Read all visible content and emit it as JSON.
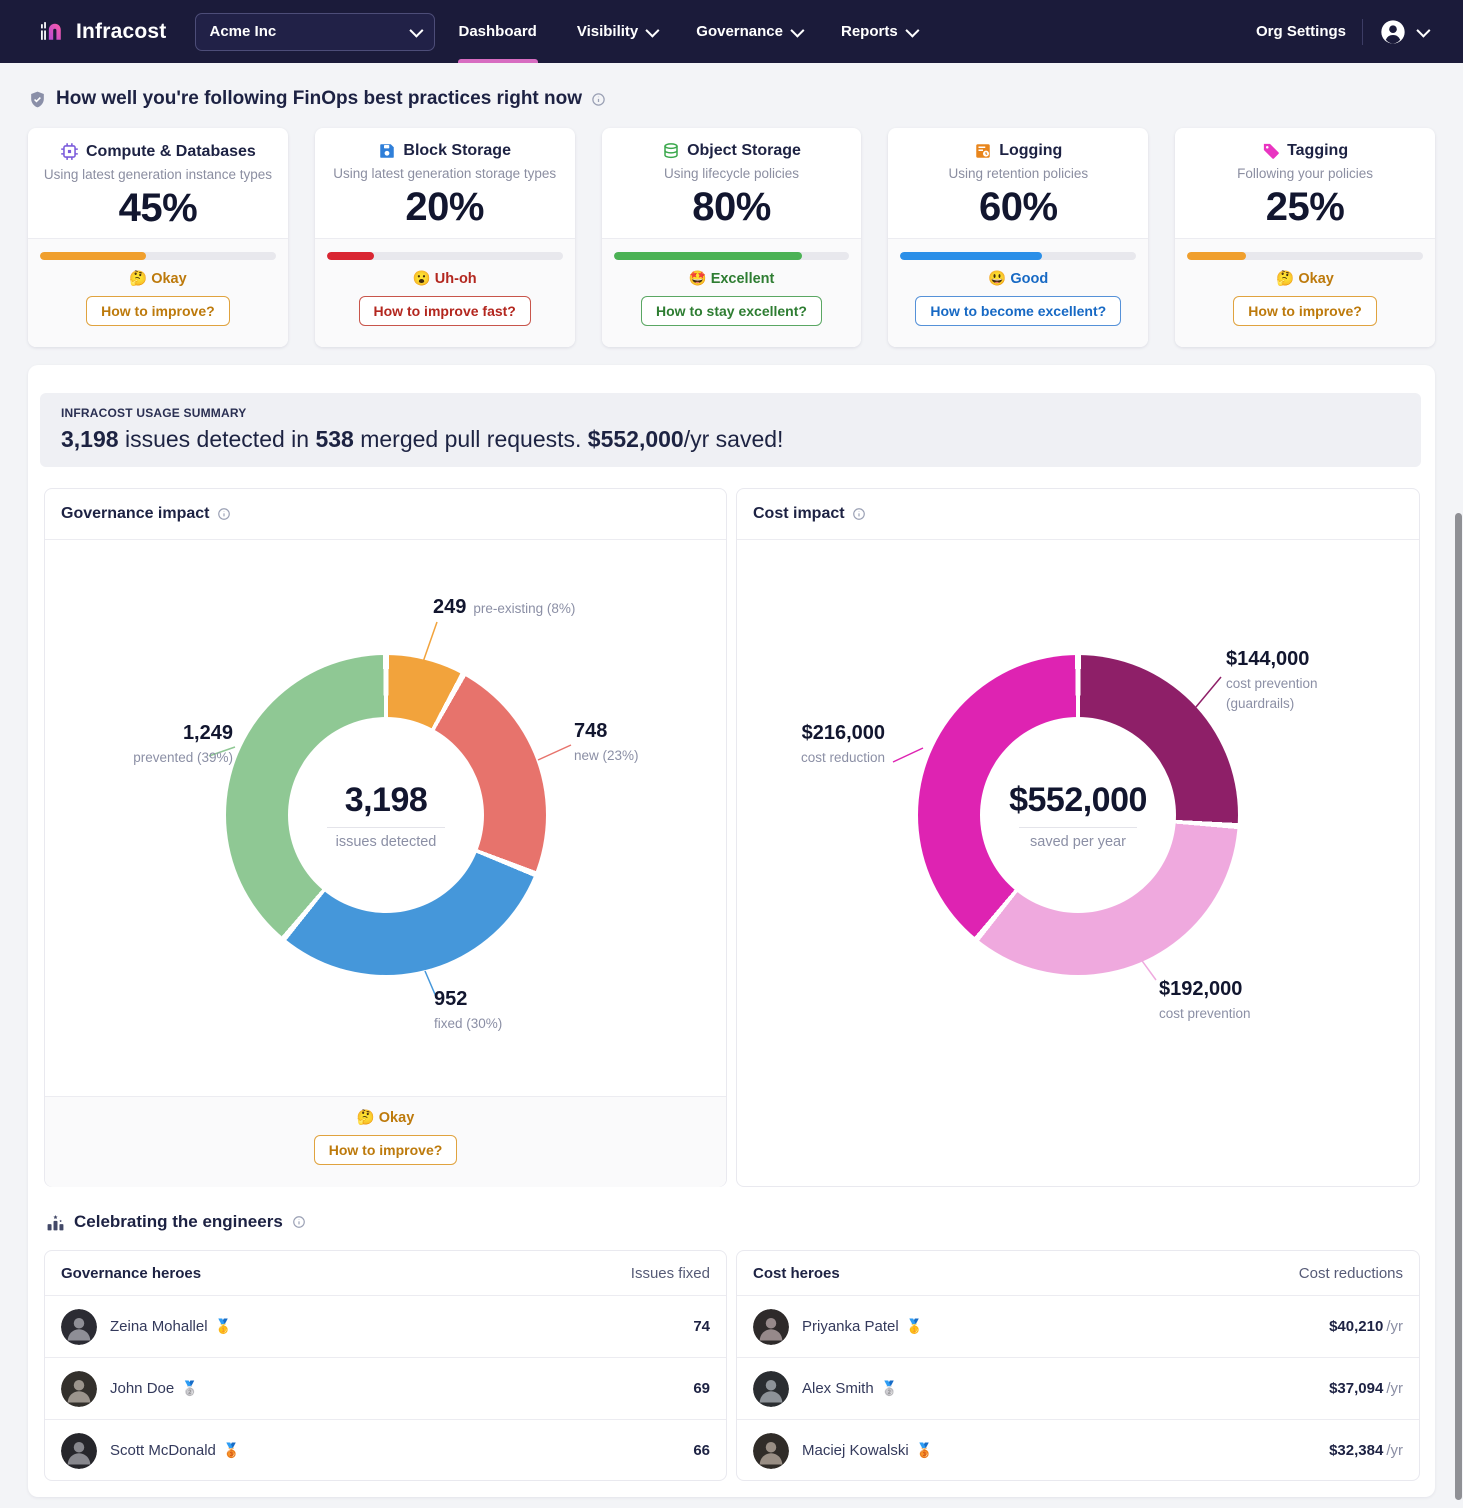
{
  "colors": {
    "brand_pink": "#d76cc1",
    "nav_bg": "#1b1b3a",
    "bar_orange": "#f09f2d",
    "bar_red": "#d92632",
    "bar_green": "#4bb255",
    "bar_blue": "#2b8fe8"
  },
  "nav": {
    "brand": "Infracost",
    "org_selector": "Acme Inc",
    "items": [
      {
        "label": "Dashboard"
      },
      {
        "label": "Visibility"
      },
      {
        "label": "Governance"
      },
      {
        "label": "Reports"
      }
    ],
    "org_settings": "Org Settings"
  },
  "practices": {
    "title": "How well you're following FinOps best practices right now",
    "cards": [
      {
        "title": "Compute & Databases",
        "subtitle": "Using latest generation instance types",
        "percent": "45%",
        "percent_value": 45,
        "bar_color": "#f09f2d",
        "status_emoji": "🤔",
        "status": "Okay",
        "status_color": "#bd7a0c",
        "button": "How to improve?",
        "button_color": "#bd7a0c",
        "button_border": "#e0a33f"
      },
      {
        "title": "Block Storage",
        "subtitle": "Using latest generation storage types",
        "percent": "20%",
        "percent_value": 20,
        "bar_color": "#d92632",
        "status_emoji": "😮",
        "status": "Uh-oh",
        "status_color": "#b3271f",
        "button": "How to improve fast?",
        "button_color": "#b3271f",
        "button_border": "#c8554b"
      },
      {
        "title": "Object Storage",
        "subtitle": "Using lifecycle policies",
        "percent": "80%",
        "percent_value": 80,
        "bar_color": "#4bb255",
        "status_emoji": "🤩",
        "status": "Excellent",
        "status_color": "#2e7d32",
        "button": "How to stay excellent?",
        "button_color": "#2e7d32",
        "button_border": "#5aa763"
      },
      {
        "title": "Logging",
        "subtitle": "Using retention policies",
        "percent": "60%",
        "percent_value": 60,
        "bar_color": "#2b8fe8",
        "status_emoji": "😃",
        "status": "Good",
        "status_color": "#1769c4",
        "button": "How to become excellent?",
        "button_color": "#1769c4",
        "button_border": "#5591d8"
      },
      {
        "title": "Tagging",
        "subtitle": "Following your policies",
        "percent": "25%",
        "percent_value": 25,
        "bar_color": "#f09f2d",
        "status_emoji": "🤔",
        "status": "Okay",
        "status_color": "#bd7a0c",
        "button": "How to improve?",
        "button_color": "#bd7a0c",
        "button_border": "#e0a33f"
      }
    ]
  },
  "summary": {
    "label": "INFRACOST USAGE SUMMARY",
    "s1": "3,198",
    "s2": " issues detected in ",
    "s3": "538",
    "s4": " merged pull requests. ",
    "s5": "$552,000",
    "s6": "/yr saved!"
  },
  "chart_data": [
    {
      "type": "pie",
      "title": "Governance impact",
      "center": {
        "value": "3,198",
        "label": "issues detected"
      },
      "segments": [
        {
          "label": "pre-existing",
          "value": 249,
          "pct": 8,
          "display": "249",
          "desc": "pre-existing (8%)",
          "color": "#f2a33c"
        },
        {
          "label": "new",
          "value": 748,
          "pct": 23,
          "display": "748",
          "desc": "new (23%)",
          "color": "#e7736c"
        },
        {
          "label": "fixed",
          "value": 952,
          "pct": 30,
          "display": "952",
          "desc": "fixed (30%)",
          "color": "#4597da"
        },
        {
          "label": "prevented",
          "value": 1249,
          "pct": 39,
          "display": "1,249",
          "desc": "prevented (39%)",
          "color": "#8fc894"
        }
      ],
      "status": {
        "emoji": "🤔",
        "label": "Okay",
        "color": "#bd7a0c",
        "button": "How to improve?",
        "button_color": "#bd7a0c",
        "button_border": "#e0a33f"
      }
    },
    {
      "type": "pie",
      "title": "Cost impact",
      "center": {
        "value": "$552,000",
        "label": "saved per year"
      },
      "segments": [
        {
          "label": "cost prevention (guardrails)",
          "value": 144000,
          "pct": 26.1,
          "display": "$144,000",
          "desc": "cost prevention",
          "desc2": "(guardrails)",
          "color": "#8e1f68"
        },
        {
          "label": "cost prevention",
          "value": 192000,
          "pct": 34.8,
          "display": "$192,000",
          "desc": "cost prevention",
          "color": "#efa9de"
        },
        {
          "label": "cost reduction",
          "value": 216000,
          "pct": 39.1,
          "display": "$216,000",
          "desc": "cost reduction",
          "color": "#de23b2"
        }
      ]
    }
  ],
  "heroes": {
    "section_title": "Celebrating the engineers",
    "governance": {
      "title": "Governance heroes",
      "value_header": "Issues fixed",
      "rows": [
        {
          "name": "Zeina Mohallel",
          "medal": "🥇",
          "value": "74"
        },
        {
          "name": "John Doe",
          "medal": "🥈",
          "value": "69"
        },
        {
          "name": "Scott McDonald",
          "medal": "🥉",
          "value": "66"
        }
      ]
    },
    "cost": {
      "title": "Cost heroes",
      "value_header": "Cost reductions",
      "rows": [
        {
          "name": "Priyanka Patel",
          "medal": "🥇",
          "value": "$40,210",
          "suffix": "/yr"
        },
        {
          "name": "Alex Smith",
          "medal": "🥈",
          "value": "$37,094",
          "suffix": "/yr"
        },
        {
          "name": "Maciej Kowalski",
          "medal": "🥉",
          "value": "$32,384",
          "suffix": "/yr"
        }
      ]
    }
  }
}
